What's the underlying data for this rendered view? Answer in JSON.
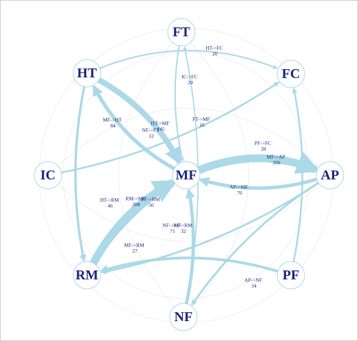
{
  "nodes": [
    {
      "label": "FT"
    },
    {
      "label": "FC"
    },
    {
      "label": "HT"
    },
    {
      "label": "IC"
    },
    {
      "label": "MF"
    },
    {
      "label": "AP"
    },
    {
      "label": "RM"
    },
    {
      "label": "PF"
    },
    {
      "label": "NF"
    }
  ],
  "edges": [
    {
      "label": "HT->FC",
      "weight": 20
    },
    {
      "label": "IC->FC",
      "weight": 29
    },
    {
      "label": "HT->MF",
      "weight": 145
    },
    {
      "label": "NF->FT",
      "weight": 12
    },
    {
      "label": "MF->HT",
      "weight": 84
    },
    {
      "label": "FT->MF",
      "weight": 16
    },
    {
      "label": "PF->FC",
      "weight": 28
    },
    {
      "label": "MF->AP",
      "weight": 206
    },
    {
      "label": "AP->MF",
      "weight": 76
    },
    {
      "label": "HT->RM",
      "weight": 46
    },
    {
      "label": "RM->MF",
      "weight": 208
    },
    {
      "label": "PF->RM",
      "weight": 56
    },
    {
      "label": "NF->MF",
      "weight": 71
    },
    {
      "label": "AP->RM",
      "weight": 32
    },
    {
      "label": "MF->RM",
      "weight": 27
    },
    {
      "label": "AP->NF",
      "weight": 34
    }
  ]
}
